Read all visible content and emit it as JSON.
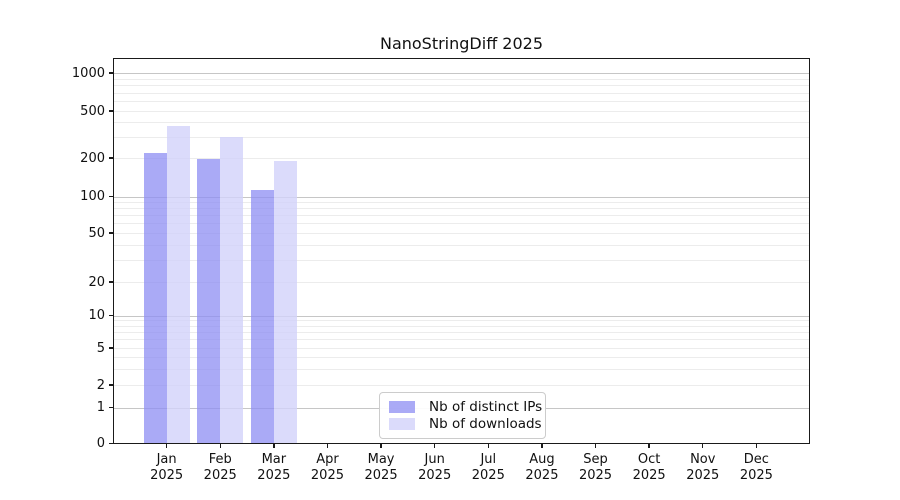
{
  "chart_data": {
    "type": "bar",
    "title": "NanoStringDiff 2025",
    "categories": [
      "Jan 2025",
      "Feb 2025",
      "Mar 2025",
      "Apr 2025",
      "May 2025",
      "Jun 2025",
      "Jul 2025",
      "Aug 2025",
      "Sep 2025",
      "Oct 2025",
      "Nov 2025",
      "Dec 2025"
    ],
    "series": [
      {
        "name": "Nb of distinct IPs",
        "color": "#8e8ef3",
        "alpha": 0.75,
        "values": [
          220,
          196,
          113,
          0,
          0,
          0,
          0,
          0,
          0,
          0,
          0,
          0
        ]
      },
      {
        "name": "Nb of downloads",
        "color": "#d2d2fa",
        "alpha": 0.8,
        "values": [
          372,
          300,
          188,
          0,
          0,
          0,
          0,
          0,
          0,
          0,
          0,
          0
        ]
      }
    ],
    "xlabel": "",
    "ylabel": "",
    "y_axis": {
      "scale": "log-like",
      "ticks": [
        0,
        1,
        2,
        5,
        10,
        20,
        50,
        100,
        200,
        500,
        1000
      ],
      "range": [
        0,
        1300
      ]
    },
    "grid": {
      "shown": true,
      "major_at": [
        1,
        10,
        100,
        1000
      ],
      "major_color": "#c6c6c6",
      "minor_color": "#ececec"
    },
    "legend": {
      "position": "bottom-center-inside"
    }
  }
}
